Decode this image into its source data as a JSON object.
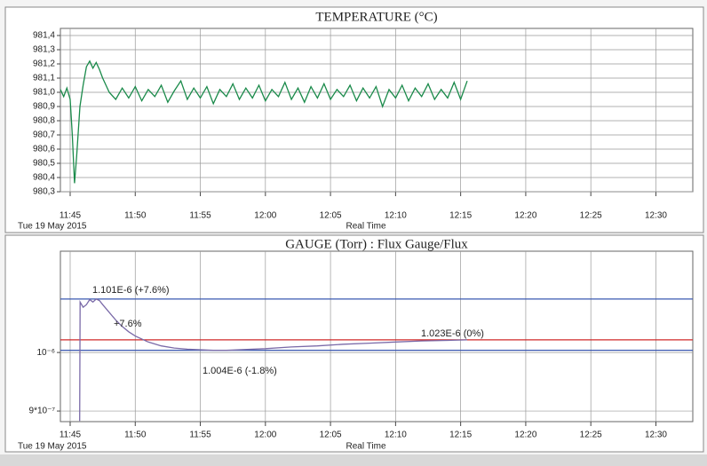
{
  "chart_data": [
    {
      "type": "line",
      "title": "TEMPERATURE (°C)",
      "xlabel": "Real Time",
      "date_label": "Tue 19 May 2015",
      "xlim": [
        "11:44:15",
        "12:32:50"
      ],
      "xticks": [
        "11:45",
        "11:50",
        "11:55",
        "12:00",
        "12:05",
        "12:10",
        "12:15",
        "12:20",
        "12:25",
        "12:30"
      ],
      "ylim": [
        980.3,
        981.45
      ],
      "yticks": [
        {
          "value": 980.3,
          "label": "980,3"
        },
        {
          "value": 980.4,
          "label": "980,4"
        },
        {
          "value": 980.5,
          "label": "980,5"
        },
        {
          "value": 980.6,
          "label": "980,6"
        },
        {
          "value": 980.7,
          "label": "980,7"
        },
        {
          "value": 980.8,
          "label": "980,8"
        },
        {
          "value": 980.9,
          "label": "980,9"
        },
        {
          "value": 981.0,
          "label": "981,0"
        },
        {
          "value": 981.1,
          "label": "981,1"
        },
        {
          "value": 981.2,
          "label": "981,2"
        },
        {
          "value": 981.3,
          "label": "981,3"
        },
        {
          "value": 981.4,
          "label": "981,4"
        }
      ],
      "grid": true,
      "series": [
        {
          "color": "#1a8a4a",
          "x": [
            "11:44:15",
            "11:44:30",
            "11:44:45",
            "11:45:00",
            "11:45:10",
            "11:45:20",
            "11:45:30",
            "11:45:45",
            "11:46:00",
            "11:46:15",
            "11:46:30",
            "11:46:45",
            "11:47:00",
            "11:47:15",
            "11:47:30",
            "11:47:45",
            "11:48:00",
            "11:48:30",
            "11:49:00",
            "11:49:30",
            "11:50:00",
            "11:50:30",
            "11:51:00",
            "11:51:30",
            "11:52:00",
            "11:52:30",
            "11:53:00",
            "11:53:30",
            "11:54:00",
            "11:54:30",
            "11:55:00",
            "11:55:30",
            "11:56:00",
            "11:56:30",
            "11:57:00",
            "11:57:30",
            "11:58:00",
            "11:58:30",
            "11:59:00",
            "11:59:30",
            "12:00:00",
            "12:00:30",
            "12:01:00",
            "12:01:30",
            "12:02:00",
            "12:02:30",
            "12:03:00",
            "12:03:30",
            "12:04:00",
            "12:04:30",
            "12:05:00",
            "12:05:30",
            "12:06:00",
            "12:06:30",
            "12:07:00",
            "12:07:30",
            "12:08:00",
            "12:08:30",
            "12:09:00",
            "12:09:30",
            "12:10:00",
            "12:10:30",
            "12:11:00",
            "12:11:30",
            "12:12:00",
            "12:12:30",
            "12:13:00",
            "12:13:30",
            "12:14:00",
            "12:14:30",
            "12:15:00",
            "12:15:30"
          ],
          "values": [
            981.02,
            980.97,
            981.03,
            980.95,
            980.7,
            980.36,
            980.55,
            980.9,
            981.05,
            981.18,
            981.22,
            981.17,
            981.21,
            981.16,
            981.1,
            981.05,
            981.0,
            980.95,
            981.03,
            980.96,
            981.04,
            980.94,
            981.02,
            980.97,
            981.05,
            980.93,
            981.01,
            981.08,
            980.95,
            981.03,
            980.96,
            981.04,
            980.92,
            981.02,
            980.97,
            981.06,
            980.95,
            981.03,
            980.96,
            981.05,
            980.94,
            981.02,
            980.97,
            981.07,
            980.95,
            981.03,
            980.93,
            981.04,
            980.96,
            981.06,
            980.95,
            981.02,
            980.97,
            981.05,
            980.94,
            981.03,
            980.96,
            981.04,
            980.9,
            981.02,
            980.96,
            981.05,
            980.94,
            981.03,
            980.97,
            981.06,
            980.95,
            981.02,
            980.96,
            981.07,
            980.95,
            981.08
          ]
        }
      ]
    },
    {
      "type": "line",
      "title": "GAUGE (Torr)  :  Flux Gauge/Flux",
      "xlabel": "Real Time",
      "date_label": "Tue 19 May 2015",
      "xlim": [
        "11:44:15",
        "12:32:50"
      ],
      "xticks": [
        "11:45",
        "11:50",
        "11:55",
        "12:00",
        "12:05",
        "12:10",
        "12:15",
        "12:20",
        "12:25",
        "12:30"
      ],
      "log_y": true,
      "ylim": [
        8.83e-07,
        1.2e-06
      ],
      "yticks": [
        {
          "value": 9e-07,
          "label": "9*10⁻⁷"
        },
        {
          "value": 1e-06,
          "label": "10⁻⁶"
        }
      ],
      "grid": true,
      "reference_lines": [
        {
          "value": 1.101e-06,
          "color": "#3a58b0"
        },
        {
          "value": 1.023e-06,
          "color": "#d02828"
        },
        {
          "value": 1.004e-06,
          "color": "#3a58b0"
        }
      ],
      "annotations": [
        "1.101E-6 (+7.6%)",
        "+7.6%",
        "1.004E-6 (-1.8%)",
        "1.023E-6 (0%)"
      ],
      "series": [
        {
          "color": "#7a6aa8",
          "x": [
            "11:45:44",
            "11:45:46",
            "11:46:00",
            "11:46:15",
            "11:46:30",
            "11:46:45",
            "11:47:00",
            "11:47:15",
            "11:47:30",
            "11:48:00",
            "11:48:30",
            "11:49:00",
            "11:49:30",
            "11:50:00",
            "11:51:00",
            "11:52:00",
            "11:53:00",
            "11:54:00",
            "11:55:00",
            "11:56:00",
            "11:57:00",
            "11:58:00",
            "12:00:00",
            "12:02:00",
            "12:04:00",
            "12:06:00",
            "12:08:00",
            "12:10:00",
            "12:12:00",
            "12:14:00",
            "12:15:30"
          ],
          "values": [
            8.84e-07,
            1.095e-06,
            1.085e-06,
            1.09e-06,
            1.1e-06,
            1.095e-06,
            1.101e-06,
            1.098e-06,
            1.09e-06,
            1.075e-06,
            1.06e-06,
            1.048e-06,
            1.038e-06,
            1.03e-06,
            1.019e-06,
            1.012e-06,
            1.008e-06,
            1.006e-06,
            1.005e-06,
            1.004e-06,
            1.004e-06,
            1.005e-06,
            1.007e-06,
            1.01e-06,
            1.012e-06,
            1.015e-06,
            1.017e-06,
            1.019e-06,
            1.021e-06,
            1.022e-06,
            1.023e-06
          ]
        }
      ]
    }
  ]
}
